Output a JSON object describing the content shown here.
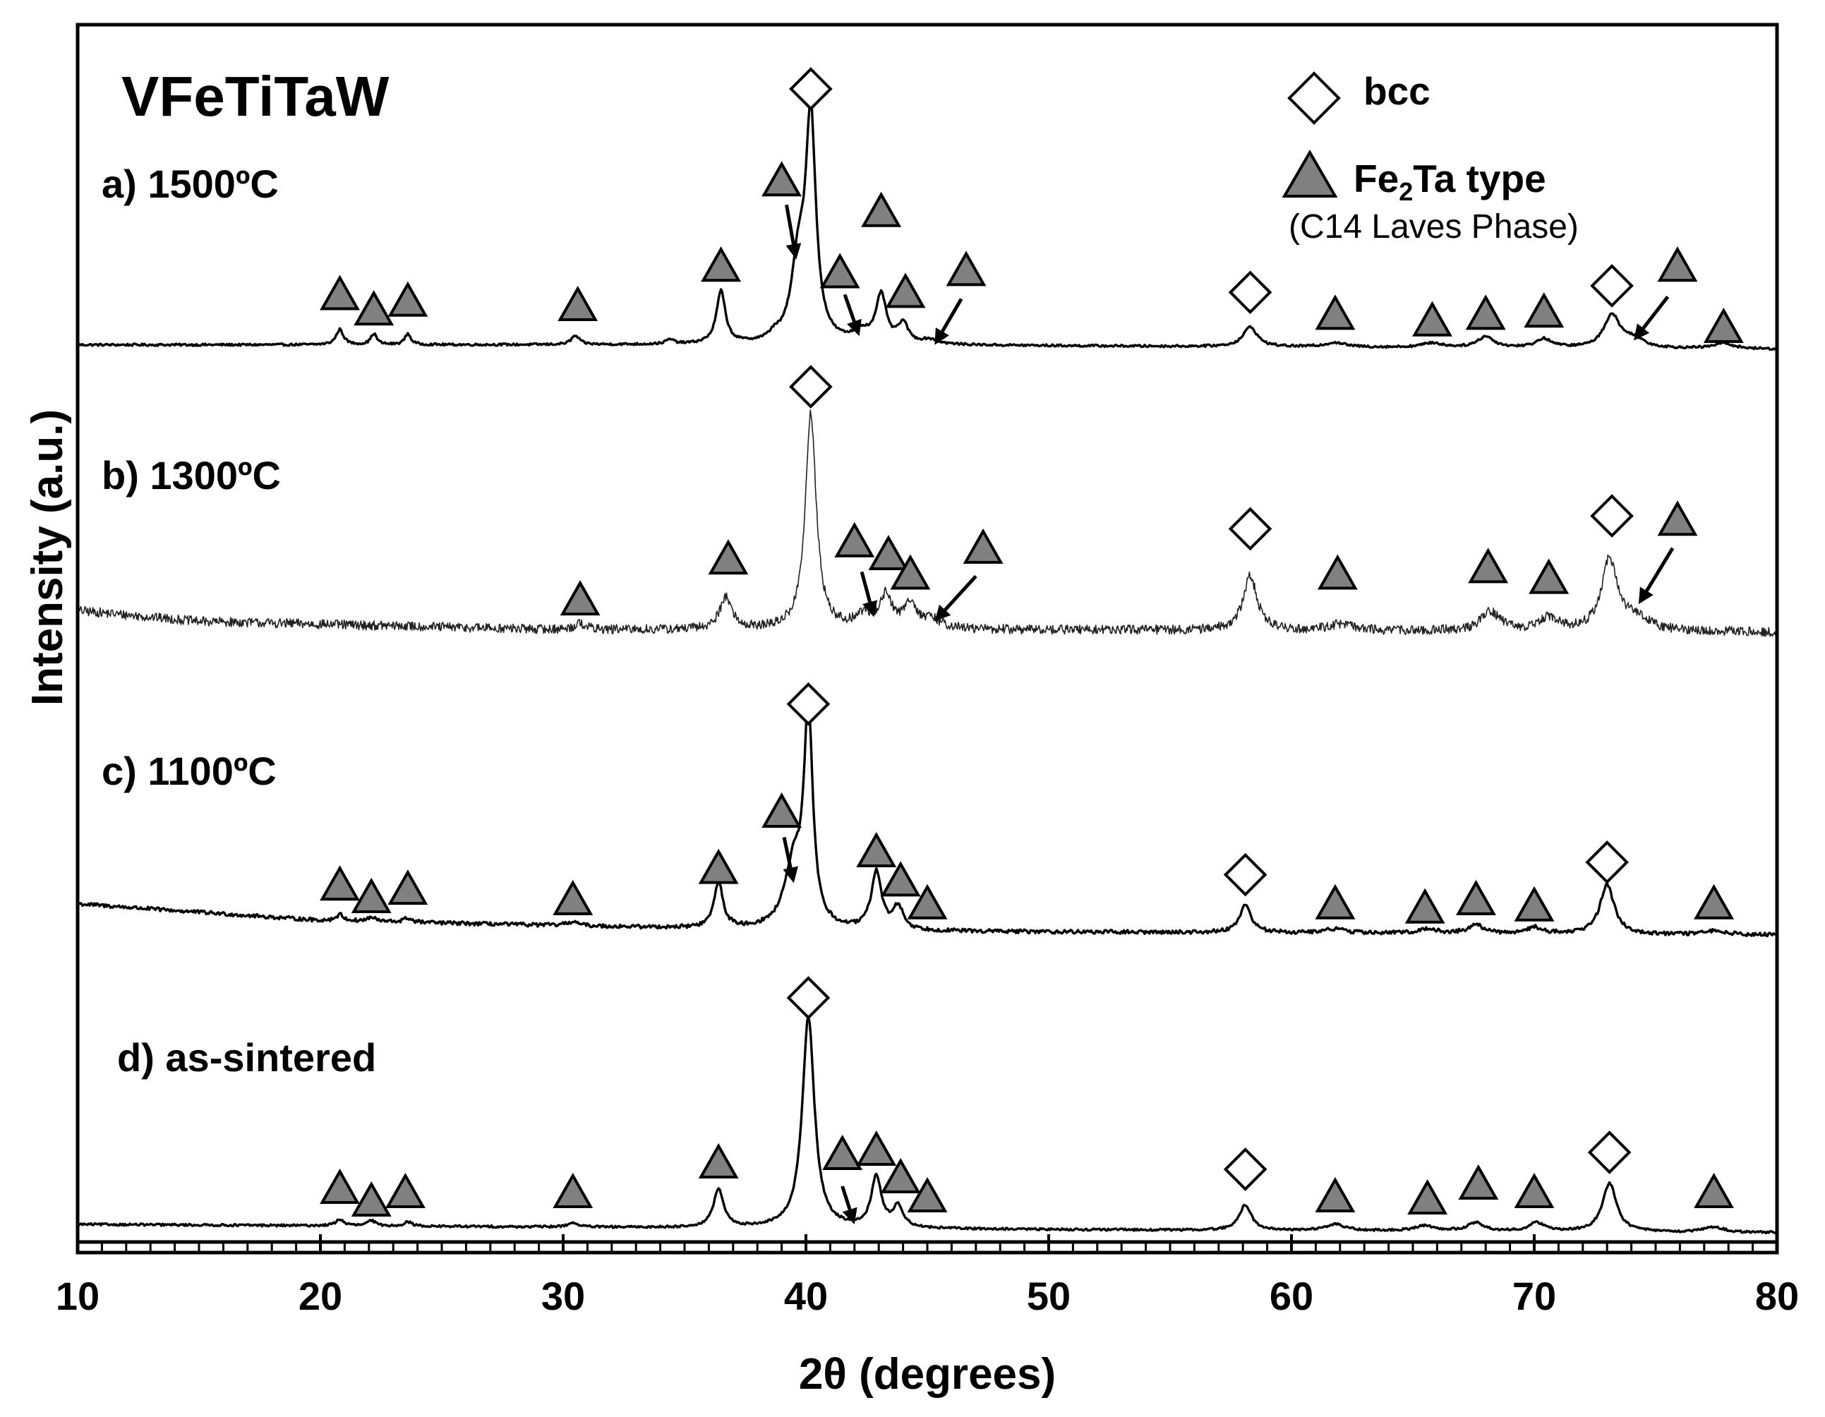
{
  "chart_data": {
    "type": "line",
    "title": "VFeTiTaW",
    "xlabel": "2θ (degrees)",
    "ylabel": "Intensity (a.u.)",
    "xlim": [
      10,
      80
    ],
    "xticks": [
      10,
      20,
      30,
      40,
      50,
      60,
      70,
      80
    ],
    "x_minor_step": 1,
    "y_units": "arbitrary; each pattern offset vertically, 0-100 relative scale",
    "legend": {
      "placement": "top-right",
      "entries": [
        {
          "marker": "diamond",
          "label": "bcc",
          "sub": ""
        },
        {
          "marker": "triangle",
          "label_main": "Fe",
          "label_sub": "2",
          "label_rest": "Ta type",
          "sub": "(C14 Laves Phase)"
        }
      ]
    },
    "series": [
      {
        "name": "a) 1500ºC",
        "noise": 0.5,
        "baseline": [
          [
            10,
            3
          ],
          [
            40,
            3
          ],
          [
            80,
            1
          ]
        ],
        "peaks": [
          [
            20.8,
            7,
            0.18
          ],
          [
            22.2,
            5,
            0.15
          ],
          [
            23.6,
            5,
            0.15
          ],
          [
            30.5,
            4,
            0.2
          ],
          [
            34.4,
            2,
            0.2
          ],
          [
            36.5,
            24,
            0.22
          ],
          [
            38.7,
            2.5,
            0.2
          ],
          [
            39.7,
            35,
            0.35
          ],
          [
            40.2,
            100,
            0.25
          ],
          [
            42.3,
            5,
            0.4
          ],
          [
            43.1,
            22,
            0.25
          ],
          [
            44.0,
            9,
            0.25
          ],
          [
            45.1,
            2,
            0.4
          ],
          [
            58.3,
            9,
            0.35
          ],
          [
            61.8,
            2,
            0.5
          ],
          [
            65.8,
            2,
            0.5
          ],
          [
            68.0,
            5,
            0.4
          ],
          [
            70.4,
            4,
            0.4
          ],
          [
            73.2,
            15,
            0.4
          ],
          [
            74.1,
            4,
            0.5
          ],
          [
            77.8,
            2.5,
            0.5
          ]
        ],
        "bcc_markers": [
          [
            40.2,
            120
          ],
          [
            58.3,
            27
          ],
          [
            73.2,
            30
          ]
        ],
        "laves_markers": [
          [
            20.8,
            25
          ],
          [
            22.2,
            18
          ],
          [
            23.6,
            22
          ],
          [
            30.6,
            20
          ],
          [
            36.5,
            38
          ],
          [
            39.0,
            77
          ],
          [
            41.4,
            35
          ],
          [
            43.1,
            63
          ],
          [
            44.1,
            26
          ],
          [
            46.6,
            36
          ],
          [
            61.8,
            16
          ],
          [
            65.8,
            13
          ],
          [
            68.0,
            16
          ],
          [
            70.4,
            17
          ],
          [
            75.9,
            38
          ],
          [
            77.8,
            10
          ]
        ],
        "arrows": [
          [
            39.2,
            67,
            39.6,
            42
          ],
          [
            41.6,
            26,
            42.2,
            7
          ],
          [
            46.4,
            24,
            45.3,
            3
          ],
          [
            75.5,
            25,
            74.1,
            5
          ]
        ]
      },
      {
        "name": "b) 1300ºC",
        "noise": 2.2,
        "baseline": [
          [
            10,
            14
          ],
          [
            15,
            9
          ],
          [
            30,
            5
          ],
          [
            50,
            5
          ],
          [
            80,
            4
          ]
        ],
        "peaks": [
          [
            30.7,
            3,
            0.3
          ],
          [
            36.7,
            15,
            0.3
          ],
          [
            40.2,
            100,
            0.27
          ],
          [
            42.4,
            6,
            0.4
          ],
          [
            43.3,
            15,
            0.3
          ],
          [
            44.3,
            12,
            0.3
          ],
          [
            45.2,
            4,
            0.5
          ],
          [
            58.3,
            25,
            0.35
          ],
          [
            62.0,
            3,
            0.6
          ],
          [
            68.2,
            9,
            0.45
          ],
          [
            70.6,
            6,
            0.45
          ],
          [
            73.1,
            33,
            0.4
          ],
          [
            74.2,
            6,
            0.6
          ]
        ],
        "bcc_markers": [
          [
            40.2,
            118
          ],
          [
            58.3,
            52
          ],
          [
            73.2,
            58
          ]
        ],
        "laves_markers": [
          [
            30.7,
            18
          ],
          [
            36.8,
            37
          ],
          [
            42.0,
            45
          ],
          [
            43.4,
            39
          ],
          [
            44.3,
            30
          ],
          [
            47.3,
            42
          ],
          [
            61.9,
            30
          ],
          [
            68.1,
            33
          ],
          [
            70.6,
            28
          ],
          [
            75.9,
            55
          ]
        ],
        "arrows": [
          [
            42.3,
            32,
            42.8,
            11
          ],
          [
            47.0,
            30,
            45.3,
            9
          ],
          [
            75.7,
            43,
            74.3,
            17
          ]
        ]
      },
      {
        "name": "c) 1100ºC",
        "noise": 0.9,
        "baseline": [
          [
            10,
            17
          ],
          [
            20,
            9
          ],
          [
            40,
            4
          ],
          [
            80,
            2
          ]
        ],
        "peaks": [
          [
            20.8,
            3,
            0.2
          ],
          [
            22.1,
            2,
            0.2
          ],
          [
            23.6,
            2,
            0.2
          ],
          [
            30.4,
            2,
            0.25
          ],
          [
            36.4,
            22,
            0.22
          ],
          [
            39.5,
            30,
            0.45
          ],
          [
            40.1,
            100,
            0.22
          ],
          [
            42.9,
            28,
            0.25
          ],
          [
            43.8,
            11,
            0.25
          ],
          [
            58.1,
            13,
            0.3
          ],
          [
            61.8,
            2,
            0.5
          ],
          [
            65.6,
            2,
            0.5
          ],
          [
            67.6,
            4,
            0.4
          ],
          [
            70.0,
            3,
            0.4
          ],
          [
            73.0,
            24,
            0.35
          ],
          [
            77.5,
            2,
            0.5
          ]
        ],
        "bcc_markers": [
          [
            40.1,
            113
          ],
          [
            58.1,
            31
          ],
          [
            73.0,
            37
          ]
        ],
        "laves_markers": [
          [
            20.8,
            25
          ],
          [
            22.1,
            19
          ],
          [
            23.6,
            23
          ],
          [
            30.4,
            18
          ],
          [
            36.4,
            33
          ],
          [
            39.0,
            60
          ],
          [
            42.9,
            41
          ],
          [
            43.9,
            27
          ],
          [
            45.0,
            16
          ],
          [
            61.8,
            16
          ],
          [
            65.5,
            14
          ],
          [
            67.6,
            18
          ],
          [
            70.0,
            15
          ],
          [
            77.4,
            16
          ]
        ],
        "arrows": [
          [
            39.1,
            49,
            39.5,
            27
          ]
        ]
      },
      {
        "name": "d) as-sintered",
        "noise": 0.5,
        "baseline": [
          [
            10,
            5
          ],
          [
            40,
            3
          ],
          [
            80,
            1
          ]
        ],
        "peaks": [
          [
            20.8,
            3,
            0.2
          ],
          [
            22.1,
            2.5,
            0.2
          ],
          [
            23.6,
            2,
            0.2
          ],
          [
            30.4,
            2,
            0.25
          ],
          [
            36.4,
            18,
            0.25
          ],
          [
            40.1,
            100,
            0.3
          ],
          [
            42.9,
            24,
            0.25
          ],
          [
            43.8,
            10,
            0.25
          ],
          [
            58.1,
            12,
            0.3
          ],
          [
            61.8,
            3,
            0.5
          ],
          [
            65.5,
            2.5,
            0.5
          ],
          [
            67.6,
            4,
            0.4
          ],
          [
            70.1,
            4,
            0.4
          ],
          [
            73.1,
            23,
            0.35
          ],
          [
            77.4,
            2.5,
            0.5
          ]
        ],
        "bcc_markers": [
          [
            40.1,
            112
          ],
          [
            58.1,
            31
          ],
          [
            73.1,
            39
          ]
        ],
        "laves_markers": [
          [
            20.8,
            21
          ],
          [
            22.1,
            15
          ],
          [
            23.5,
            19
          ],
          [
            30.4,
            19
          ],
          [
            36.4,
            33
          ],
          [
            41.5,
            37
          ],
          [
            42.9,
            39
          ],
          [
            43.9,
            26
          ],
          [
            45.0,
            17
          ],
          [
            61.8,
            17
          ],
          [
            65.6,
            16
          ],
          [
            67.7,
            23
          ],
          [
            70.0,
            19
          ],
          [
            77.4,
            19
          ]
        ],
        "arrows": [
          [
            41.5,
            23,
            42.0,
            5
          ]
        ]
      }
    ]
  }
}
